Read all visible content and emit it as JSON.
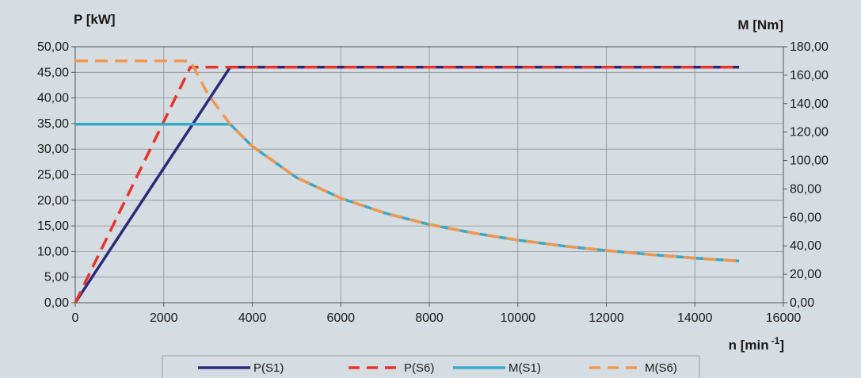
{
  "chart_data": {
    "type": "line",
    "x_label_main": "n [min",
    "x_label_sup": "-1",
    "x_label_end": "]",
    "y_left_label": "P [kW]",
    "y_right_label": "M [Nm]",
    "x_range": [
      0,
      16000
    ],
    "y_left_range": [
      0,
      50
    ],
    "y_right_range": [
      0,
      180
    ],
    "x_ticks": [
      "0",
      "2000",
      "4000",
      "6000",
      "8000",
      "10000",
      "12000",
      "14000",
      "16000"
    ],
    "y_left_ticks": [
      "0,00",
      "5,00",
      "10,00",
      "15,00",
      "20,00",
      "25,00",
      "30,00",
      "35,00",
      "40,00",
      "45,00",
      "50,00"
    ],
    "y_right_ticks": [
      "0,00",
      "20,00",
      "40,00",
      "60,00",
      "80,00",
      "100,00",
      "120,00",
      "140,00",
      "160,00",
      "180,00"
    ],
    "grid": true,
    "legend_position": "bottom",
    "series": [
      {
        "name": "P(S1)",
        "axis": "left",
        "color": "#2b2b7a",
        "dash": "solid",
        "points": [
          [
            0,
            0
          ],
          [
            3500,
            46
          ],
          [
            15000,
            46
          ]
        ]
      },
      {
        "name": "P(S6)",
        "axis": "left",
        "color": "#e8332a",
        "dash": "dashed",
        "points": [
          [
            0,
            0
          ],
          [
            2600,
            46
          ],
          [
            15000,
            46
          ]
        ]
      },
      {
        "name": "M(S1)",
        "axis": "right",
        "color": "#36a9c9",
        "dash": "solid",
        "points": [
          [
            0,
            125.5
          ],
          [
            3500,
            125.5
          ],
          [
            4000,
            110
          ],
          [
            5000,
            88
          ],
          [
            6000,
            73.5
          ],
          [
            7000,
            63
          ],
          [
            8000,
            55
          ],
          [
            9000,
            49
          ],
          [
            10000,
            44
          ],
          [
            11000,
            40
          ],
          [
            12000,
            36.7
          ],
          [
            13000,
            33.8
          ],
          [
            14000,
            31.4
          ],
          [
            15000,
            29.3
          ]
        ]
      },
      {
        "name": "M(S6)",
        "axis": "right",
        "color": "#f0974f",
        "dash": "dashed",
        "points": [
          [
            0,
            170
          ],
          [
            2600,
            170
          ],
          [
            3000,
            146.5
          ],
          [
            3500,
            125.5
          ],
          [
            4000,
            110
          ],
          [
            5000,
            88
          ],
          [
            6000,
            73.5
          ],
          [
            7000,
            63
          ],
          [
            8000,
            55
          ],
          [
            9000,
            49
          ],
          [
            10000,
            44
          ],
          [
            11000,
            40
          ],
          [
            12000,
            36.7
          ],
          [
            13000,
            33.8
          ],
          [
            14000,
            31.4
          ],
          [
            15000,
            29.3
          ]
        ]
      }
    ]
  }
}
